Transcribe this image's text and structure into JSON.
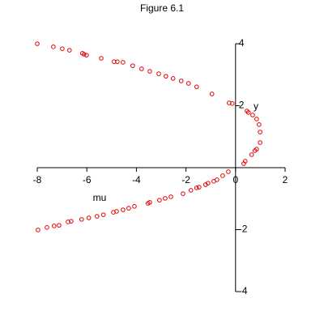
{
  "chart_data": {
    "type": "scatter",
    "title": "Figure 6.1",
    "x_label": "mu",
    "y_label": "y",
    "color": "#e00000",
    "xlim": [
      -8,
      2
    ],
    "ylim": [
      -4,
      4
    ],
    "xticks": [
      -8,
      -6,
      -4,
      -2,
      0,
      2
    ],
    "yticks": [
      -4,
      -2,
      2,
      4
    ],
    "x": [
      -8.0,
      -7.35,
      -6.99,
      -6.7,
      -6.18,
      -6.11,
      -6.01,
      -5.42,
      -4.9,
      -4.77,
      -4.54,
      -4.15,
      -3.79,
      -3.46,
      -3.1,
      -2.81,
      -2.52,
      -2.19,
      -1.9,
      -1.57,
      -0.95,
      -0.26,
      -0.13,
      0.46,
      0.52,
      0.69,
      0.85,
      0.95,
      0.99,
      0.99,
      0.85,
      0.78,
      0.65,
      0.39,
      0.33,
      -0.29,
      -0.52,
      -0.75,
      -0.88,
      -1.11,
      -1.21,
      -1.47,
      -1.57,
      -1.8,
      -2.12,
      -2.61,
      -2.84,
      -3.07,
      -3.46,
      -3.53,
      -4.08,
      -4.31,
      -4.54,
      -4.8,
      -4.93,
      -5.33,
      -5.59,
      -5.92,
      -6.21,
      -6.63,
      -6.76,
      -7.12,
      -7.32,
      -7.61,
      -7.97
    ],
    "y": [
      4.0,
      3.9,
      3.84,
      3.79,
      3.69,
      3.66,
      3.63,
      3.53,
      3.42,
      3.42,
      3.4,
      3.29,
      3.19,
      3.11,
      3.03,
      2.95,
      2.88,
      2.8,
      2.72,
      2.61,
      2.38,
      2.09,
      2.07,
      1.83,
      1.78,
      1.7,
      1.57,
      1.39,
      1.15,
      0.81,
      0.6,
      0.55,
      0.42,
      0.21,
      0.13,
      -0.13,
      -0.26,
      -0.39,
      -0.44,
      -0.5,
      -0.55,
      -0.63,
      -0.65,
      -0.73,
      -0.84,
      -0.94,
      -0.99,
      -1.05,
      -1.12,
      -1.15,
      -1.25,
      -1.31,
      -1.36,
      -1.41,
      -1.44,
      -1.52,
      -1.57,
      -1.62,
      -1.67,
      -1.73,
      -1.75,
      -1.86,
      -1.88,
      -1.93,
      -2.01
    ]
  }
}
